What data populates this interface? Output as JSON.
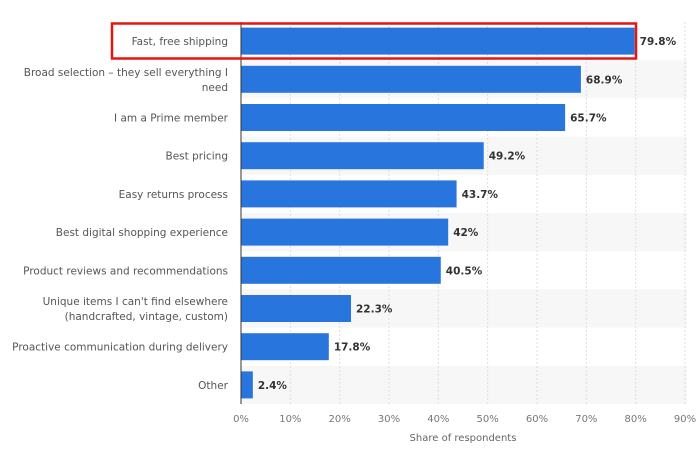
{
  "chart_data": {
    "type": "bar",
    "orientation": "horizontal",
    "categories": [
      [
        "Fast, free shipping"
      ],
      [
        "Broad selection – they sell everything I",
        "need"
      ],
      [
        "I am a Prime member"
      ],
      [
        "Best pricing"
      ],
      [
        "Easy returns process"
      ],
      [
        "Best digital shopping experience"
      ],
      [
        "Product reviews and recommendations"
      ],
      [
        "Unique items I can't find elsewhere",
        "(handcrafted, vintage, custom)"
      ],
      [
        "Proactive communication during delivery"
      ],
      [
        "Other"
      ]
    ],
    "values": [
      79.8,
      68.9,
      65.7,
      49.2,
      43.7,
      42,
      40.5,
      22.3,
      17.8,
      2.4
    ],
    "value_labels": [
      "79.8%",
      "68.9%",
      "65.7%",
      "49.2%",
      "43.7%",
      "42%",
      "40.5%",
      "22.3%",
      "17.8%",
      "2.4%"
    ],
    "xlabel": "Share of respondents",
    "ylabel": "",
    "xlim": [
      0,
      90
    ],
    "ticks": [
      "0%",
      "10%",
      "20%",
      "30%",
      "40%",
      "50%",
      "60%",
      "70%",
      "80%",
      "90%"
    ],
    "grid": true,
    "highlighted_index": 0,
    "colors": {
      "bar": "#2876dd",
      "highlight": "#e8150f",
      "band": "#f7f7f7"
    }
  }
}
